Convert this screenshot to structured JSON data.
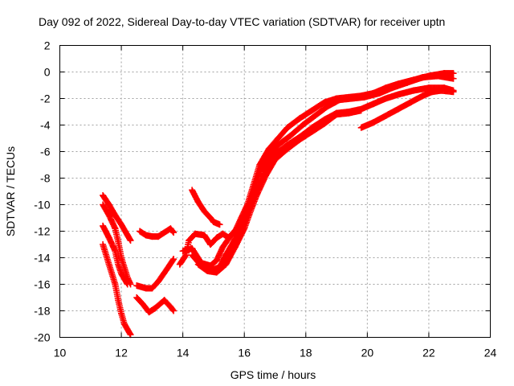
{
  "chart_data": {
    "type": "scatter",
    "title": "Day 092 of 2022, Sidereal Day-to-day VTEC variation (SDTVAR) for receiver uptn",
    "xlabel": "GPS time / hours",
    "ylabel": "SDTVAR / TECUs",
    "xlim": [
      10,
      24
    ],
    "ylim": [
      -20,
      2
    ],
    "xticks": [
      10,
      12,
      14,
      16,
      18,
      20,
      22,
      24
    ],
    "yticks": [
      -20,
      -18,
      -16,
      -14,
      -12,
      -10,
      -8,
      -6,
      -4,
      -2,
      0,
      2
    ],
    "grid": true,
    "marker": "+",
    "series": [
      {
        "name": "track1",
        "color": "#ff0000",
        "points": [
          [
            11.4,
            -9.3
          ],
          [
            11.6,
            -10.0
          ],
          [
            11.8,
            -10.8
          ],
          [
            12.0,
            -11.5
          ],
          [
            12.2,
            -12.3
          ],
          [
            12.3,
            -12.7
          ]
        ]
      },
      {
        "name": "track2",
        "color": "#ff0000",
        "points": [
          [
            11.4,
            -10.0
          ],
          [
            11.6,
            -10.8
          ],
          [
            11.8,
            -11.8
          ],
          [
            11.9,
            -12.8
          ],
          [
            12.0,
            -14.0
          ],
          [
            12.2,
            -15.5
          ],
          [
            12.3,
            -16.0
          ]
        ]
      },
      {
        "name": "track3",
        "color": "#ff0000",
        "points": [
          [
            11.4,
            -11.6
          ],
          [
            11.6,
            -12.5
          ],
          [
            11.8,
            -13.5
          ],
          [
            11.9,
            -14.5
          ],
          [
            12.0,
            -15.2
          ],
          [
            12.2,
            -16.0
          ]
        ]
      },
      {
        "name": "track4",
        "color": "#ff0000",
        "points": [
          [
            11.4,
            -13.0
          ],
          [
            11.6,
            -14.5
          ],
          [
            11.8,
            -16.0
          ],
          [
            11.9,
            -17.2
          ],
          [
            12.0,
            -18.2
          ],
          [
            12.1,
            -19.0
          ],
          [
            12.3,
            -19.8
          ]
        ]
      },
      {
        "name": "track5",
        "color": "#ff0000",
        "points": [
          [
            12.6,
            -12.0
          ],
          [
            12.8,
            -12.3
          ],
          [
            13.0,
            -12.4
          ],
          [
            13.2,
            -12.4
          ],
          [
            13.6,
            -11.8
          ],
          [
            13.7,
            -12.1
          ]
        ]
      },
      {
        "name": "track6",
        "color": "#ff0000",
        "points": [
          [
            12.5,
            -16.1
          ],
          [
            12.8,
            -16.3
          ],
          [
            13.0,
            -16.3
          ],
          [
            13.2,
            -15.8
          ],
          [
            13.5,
            -14.8
          ],
          [
            13.7,
            -14.1
          ]
        ]
      },
      {
        "name": "track7",
        "color": "#ff0000",
        "points": [
          [
            12.5,
            -17.0
          ],
          [
            12.7,
            -17.5
          ],
          [
            12.9,
            -18.1
          ],
          [
            13.1,
            -17.8
          ],
          [
            13.4,
            -17.2
          ],
          [
            13.6,
            -17.7
          ],
          [
            13.7,
            -18.0
          ]
        ]
      },
      {
        "name": "track8",
        "color": "#ff0000",
        "points": [
          [
            14.3,
            -8.9
          ],
          [
            14.5,
            -9.8
          ],
          [
            14.7,
            -10.5
          ],
          [
            14.9,
            -11.0
          ],
          [
            15.0,
            -11.3
          ],
          [
            15.2,
            -11.5
          ]
        ]
      },
      {
        "name": "track9",
        "color": "#ff0000",
        "points": [
          [
            13.9,
            -14.5
          ],
          [
            14.1,
            -13.8
          ],
          [
            14.2,
            -12.7
          ],
          [
            14.4,
            -12.2
          ],
          [
            14.7,
            -12.3
          ],
          [
            14.9,
            -13.0
          ],
          [
            15.1,
            -12.5
          ],
          [
            15.3,
            -12.2
          ],
          [
            15.5,
            -12.5
          ],
          [
            15.7,
            -12.0
          ],
          [
            15.9,
            -11.0
          ],
          [
            16.1,
            -10.0
          ],
          [
            16.3,
            -8.5
          ],
          [
            16.5,
            -7.0
          ],
          [
            16.8,
            -5.8
          ],
          [
            17.1,
            -5.0
          ],
          [
            17.4,
            -4.2
          ],
          [
            17.8,
            -3.5
          ],
          [
            18.2,
            -2.9
          ],
          [
            18.6,
            -2.3
          ],
          [
            19.0,
            -2.0
          ],
          [
            19.4,
            -1.9
          ],
          [
            19.8,
            -1.8
          ],
          [
            20.2,
            -1.6
          ],
          [
            20.6,
            -1.2
          ],
          [
            21.0,
            -0.9
          ],
          [
            21.5,
            -0.6
          ],
          [
            22.0,
            -0.3
          ],
          [
            22.5,
            -0.1
          ],
          [
            22.8,
            -0.1
          ]
        ]
      },
      {
        "name": "track10",
        "color": "#ff0000",
        "points": [
          [
            14.0,
            -13.5
          ],
          [
            14.3,
            -13.3
          ],
          [
            14.6,
            -14.4
          ],
          [
            14.9,
            -14.6
          ],
          [
            15.1,
            -14.2
          ],
          [
            15.3,
            -13.2
          ],
          [
            15.6,
            -12.2
          ],
          [
            15.9,
            -11.5
          ],
          [
            16.1,
            -10.2
          ],
          [
            16.3,
            -9.0
          ],
          [
            16.5,
            -7.5
          ],
          [
            16.8,
            -6.3
          ],
          [
            17.1,
            -5.5
          ],
          [
            17.5,
            -4.8
          ],
          [
            17.9,
            -4.0
          ],
          [
            18.3,
            -3.3
          ],
          [
            18.7,
            -2.6
          ],
          [
            19.1,
            -2.1
          ],
          [
            19.5,
            -2.0
          ],
          [
            19.9,
            -1.9
          ],
          [
            20.4,
            -1.6
          ],
          [
            20.8,
            -1.2
          ],
          [
            21.3,
            -0.8
          ],
          [
            21.8,
            -0.4
          ],
          [
            22.3,
            -0.3
          ],
          [
            22.8,
            -0.5
          ]
        ]
      },
      {
        "name": "track11",
        "color": "#ff0000",
        "points": [
          [
            14.3,
            -13.8
          ],
          [
            14.6,
            -14.6
          ],
          [
            14.9,
            -15.0
          ],
          [
            15.2,
            -14.7
          ],
          [
            15.4,
            -13.8
          ],
          [
            15.7,
            -12.6
          ],
          [
            16.0,
            -11.3
          ],
          [
            16.2,
            -10.0
          ],
          [
            16.4,
            -8.8
          ],
          [
            16.7,
            -7.3
          ],
          [
            17.0,
            -6.2
          ],
          [
            17.4,
            -5.5
          ],
          [
            17.8,
            -4.9
          ],
          [
            18.2,
            -4.2
          ],
          [
            18.6,
            -3.6
          ],
          [
            19.0,
            -3.1
          ],
          [
            19.4,
            -3.0
          ],
          [
            19.8,
            -2.8
          ],
          [
            20.2,
            -2.4
          ],
          [
            20.6,
            -2.0
          ],
          [
            21.0,
            -1.7
          ],
          [
            21.5,
            -1.4
          ],
          [
            22.0,
            -1.2
          ],
          [
            22.5,
            -1.2
          ],
          [
            22.8,
            -1.4
          ]
        ]
      },
      {
        "name": "track12",
        "color": "#ff0000",
        "points": [
          [
            14.5,
            -14.5
          ],
          [
            14.8,
            -15.0
          ],
          [
            15.1,
            -15.1
          ],
          [
            15.4,
            -14.5
          ],
          [
            15.7,
            -13.2
          ],
          [
            16.0,
            -11.8
          ],
          [
            16.2,
            -10.5
          ],
          [
            16.4,
            -9.3
          ],
          [
            16.7,
            -7.8
          ],
          [
            17.0,
            -6.6
          ],
          [
            17.4,
            -5.8
          ],
          [
            17.8,
            -5.1
          ],
          [
            18.2,
            -4.5
          ],
          [
            18.6,
            -3.9
          ],
          [
            19.0,
            -3.2
          ],
          [
            19.4,
            -3.1
          ],
          [
            19.8,
            -2.9
          ]
        ]
      },
      {
        "name": "track13",
        "color": "#ff0000",
        "points": [
          [
            19.8,
            -4.2
          ],
          [
            20.2,
            -3.8
          ],
          [
            20.6,
            -3.3
          ],
          [
            21.0,
            -2.8
          ],
          [
            21.4,
            -2.3
          ],
          [
            21.8,
            -1.8
          ],
          [
            22.1,
            -1.5
          ],
          [
            22.4,
            -1.4
          ],
          [
            22.8,
            -1.5
          ]
        ]
      }
    ]
  }
}
